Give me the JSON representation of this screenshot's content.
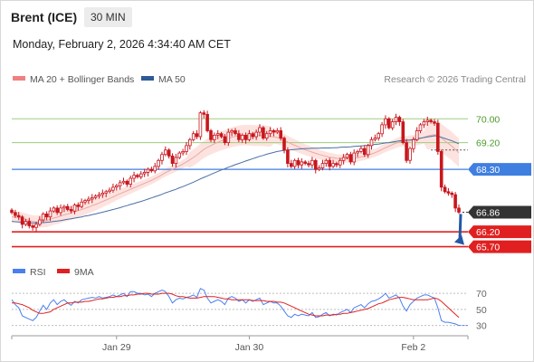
{
  "header": {
    "title": "Brent (ICE)",
    "timeframe": "30 MIN",
    "datetime": "Monday, February 2, 2026 4:34:40 AM CET"
  },
  "legend": {
    "ma20": "MA 20 + Bollinger Bands",
    "ma50": "MA 50",
    "copyright": "Research © 2026 Trading Central",
    "rsi": "RSI",
    "rsi_ma": "9MA"
  },
  "colors": {
    "candle": "#c8161d",
    "ma20": "#e8a8a8",
    "band_fill": "#fde0dc",
    "ma50": "#4a6fa5",
    "green_level": "#9fcc80",
    "blue_level": "#3f7fe0",
    "red_level": "#e02020",
    "current_price_box": "#333333",
    "rsi_line": "#4a7ff0",
    "rsi_ma_line": "#e02020",
    "arrow": "#2457a6"
  },
  "chart_data": [
    {
      "type": "candlestick",
      "title": "Brent (ICE)",
      "timeframe": "30 MIN",
      "ylim": [
        65.2,
        70.8
      ],
      "x_ticks": [
        "Jan 29",
        "Jan 30",
        "Feb 2"
      ],
      "grid": false,
      "levels": [
        {
          "label": "70.00",
          "value": 70.0,
          "kind": "resistance",
          "color": "#9fcc80"
        },
        {
          "label": "69.20",
          "value": 69.2,
          "kind": "resistance",
          "color": "#9fcc80"
        },
        {
          "label": "68.30",
          "value": 68.3,
          "kind": "pivot",
          "color": "#3f7fe0"
        },
        {
          "label": "66.86",
          "value": 66.86,
          "kind": "last",
          "color": "#333333"
        },
        {
          "label": "66.20",
          "value": 66.2,
          "kind": "target",
          "color": "#e02020"
        },
        {
          "label": "65.70",
          "value": 65.7,
          "kind": "target",
          "color": "#e02020"
        }
      ],
      "projection": {
        "from": 66.86,
        "to": 65.7
      },
      "series": [
        {
          "name": "MA 20 + Bollinger Bands",
          "indicator": "ma20"
        },
        {
          "name": "MA 50",
          "indicator": "ma50"
        }
      ],
      "close": [
        66.85,
        66.75,
        66.7,
        66.45,
        66.55,
        66.4,
        66.35,
        66.45,
        66.6,
        66.8,
        66.7,
        66.9,
        67.0,
        66.85,
        67.0,
        67.05,
        66.95,
        66.9,
        67.1,
        67.05,
        67.2,
        67.25,
        67.3,
        67.35,
        67.4,
        67.45,
        67.5,
        67.55,
        67.6,
        67.7,
        67.75,
        67.85,
        67.9,
        67.8,
        68.0,
        68.1,
        68.05,
        68.15,
        68.2,
        68.3,
        68.25,
        68.4,
        68.6,
        68.8,
        68.95,
        68.75,
        68.5,
        68.7,
        68.85,
        68.9,
        69.1,
        69.3,
        69.5,
        69.4,
        70.2,
        70.15,
        69.6,
        69.3,
        69.45,
        69.5,
        69.4,
        69.2,
        69.55,
        69.6,
        69.5,
        69.3,
        69.45,
        69.3,
        69.5,
        69.4,
        69.55,
        69.7,
        69.35,
        69.5,
        69.6,
        69.55,
        69.6,
        69.35,
        68.95,
        68.5,
        68.4,
        68.6,
        68.45,
        68.55,
        68.5,
        68.45,
        68.6,
        68.3,
        68.35,
        68.5,
        68.6,
        68.4,
        68.5,
        68.45,
        68.6,
        68.7,
        68.8,
        68.55,
        68.85,
        68.9,
        69.0,
        68.8,
        69.1,
        69.3,
        69.35,
        69.5,
        69.8,
        70.0,
        69.7,
        69.9,
        70.05,
        69.9,
        69.2,
        68.6,
        69.0,
        69.3,
        69.6,
        69.8,
        69.9,
        69.95,
        69.9,
        69.85,
        68.9,
        67.7,
        67.55,
        67.5,
        67.45,
        67.0,
        66.86
      ],
      "ma20": [
        66.7,
        66.7,
        66.68,
        66.65,
        66.62,
        66.58,
        66.55,
        66.53,
        66.55,
        66.57,
        66.58,
        66.62,
        66.66,
        66.69,
        66.73,
        66.77,
        66.8,
        66.83,
        66.87,
        66.91,
        66.95,
        66.99,
        67.03,
        67.08,
        67.12,
        67.17,
        67.22,
        67.27,
        67.32,
        67.37,
        67.43,
        67.48,
        67.53,
        67.58,
        67.63,
        67.68,
        67.73,
        67.78,
        67.83,
        67.88,
        67.93,
        67.99,
        68.05,
        68.12,
        68.19,
        68.25,
        68.3,
        68.36,
        68.42,
        68.48,
        68.55,
        68.62,
        68.7,
        68.78,
        68.88,
        68.97,
        69.04,
        69.1,
        69.16,
        69.21,
        69.26,
        69.3,
        69.34,
        69.38,
        69.41,
        69.43,
        69.45,
        69.45,
        69.45,
        69.44,
        69.44,
        69.44,
        69.43,
        69.42,
        69.41,
        69.39,
        69.37,
        69.33,
        69.28,
        69.22,
        69.16,
        69.11,
        69.06,
        69.01,
        68.96,
        68.92,
        68.88,
        68.84,
        68.8,
        68.77,
        68.74,
        68.71,
        68.69,
        68.67,
        68.66,
        68.66,
        68.66,
        68.66,
        68.67,
        68.69,
        68.72,
        68.74,
        68.78,
        68.82,
        68.86,
        68.91,
        68.97,
        69.03,
        69.08,
        69.13,
        69.18,
        69.22,
        69.24,
        69.24,
        69.25,
        69.27,
        69.3,
        69.34,
        69.38,
        69.42,
        69.45,
        69.47,
        69.44,
        69.35,
        69.26,
        69.17,
        69.08,
        68.97,
        68.86
      ],
      "ma50": [
        66.55,
        66.54,
        66.53,
        66.52,
        66.51,
        66.5,
        66.5,
        66.5,
        66.5,
        66.51,
        66.52,
        66.53,
        66.55,
        66.56,
        66.58,
        66.6,
        66.62,
        66.64,
        66.66,
        66.68,
        66.7,
        66.73,
        66.75,
        66.78,
        66.8,
        66.83,
        66.86,
        66.89,
        66.92,
        66.95,
        66.98,
        67.01,
        67.05,
        67.08,
        67.12,
        67.15,
        67.19,
        67.22,
        67.26,
        67.3,
        67.34,
        67.38,
        67.42,
        67.46,
        67.51,
        67.55,
        67.59,
        67.63,
        67.68,
        67.72,
        67.77,
        67.82,
        67.87,
        67.92,
        67.98,
        68.03,
        68.08,
        68.13,
        68.18,
        68.23,
        68.28,
        68.32,
        68.37,
        68.41,
        68.46,
        68.5,
        68.54,
        68.58,
        68.62,
        68.66,
        68.7,
        68.74,
        68.77,
        68.81,
        68.84,
        68.87,
        68.9,
        68.92,
        68.94,
        68.95,
        68.96,
        68.97,
        68.98,
        68.99,
        69.0,
        69.0,
        69.01,
        69.01,
        69.01,
        69.02,
        69.02,
        69.02,
        69.03,
        69.03,
        69.04,
        69.05,
        69.05,
        69.06,
        69.07,
        69.08,
        69.09,
        69.1,
        69.11,
        69.12,
        69.14,
        69.15,
        69.17,
        69.19,
        69.2,
        69.22,
        69.24,
        69.26,
        69.27,
        69.28,
        69.29,
        69.31,
        69.33,
        69.35,
        69.37,
        69.39,
        69.41,
        69.43,
        69.42,
        69.38,
        69.34,
        69.3,
        69.26,
        69.21,
        69.16
      ]
    },
    {
      "type": "line",
      "title": "",
      "ylim": [
        24,
        78
      ],
      "y_ticks": [
        70,
        50,
        30
      ],
      "series": [
        {
          "name": "RSI",
          "values": [
            62,
            56,
            52,
            42,
            40,
            38,
            36,
            40,
            48,
            55,
            50,
            58,
            62,
            56,
            60,
            62,
            58,
            55,
            60,
            58,
            62,
            63,
            64,
            65,
            64,
            66,
            64,
            65,
            66,
            68,
            66,
            68,
            70,
            66,
            72,
            72,
            70,
            70,
            68,
            69,
            66,
            70,
            72,
            74,
            72,
            66,
            58,
            62,
            64,
            63,
            65,
            66,
            68,
            65,
            76,
            74,
            64,
            58,
            60,
            62,
            60,
            56,
            64,
            66,
            64,
            60,
            62,
            58,
            62,
            60,
            62,
            64,
            56,
            58,
            60,
            58,
            58,
            54,
            48,
            42,
            40,
            44,
            42,
            44,
            43,
            42,
            46,
            40,
            41,
            44,
            46,
            42,
            44,
            43,
            46,
            48,
            50,
            46,
            52,
            54,
            56,
            52,
            57,
            60,
            61,
            63,
            66,
            70,
            64,
            66,
            68,
            64,
            54,
            48,
            56,
            60,
            64,
            66,
            68,
            68,
            66,
            64,
            52,
            36,
            34,
            34,
            33,
            32,
            30
          ]
        },
        {
          "name": "9MA",
          "values": [
            58,
            58,
            57,
            56,
            54,
            52,
            49,
            47,
            45,
            45,
            46,
            47,
            50,
            52,
            54,
            56,
            58,
            58,
            59,
            59,
            59,
            60,
            60,
            61,
            62,
            63,
            63,
            64,
            65,
            65,
            66,
            66,
            67,
            67,
            68,
            68,
            69,
            69,
            70,
            70,
            69,
            69,
            69,
            70,
            70,
            70,
            69,
            67,
            66,
            66,
            65,
            64,
            64,
            64,
            65,
            66,
            66,
            66,
            66,
            65,
            64,
            63,
            63,
            62,
            62,
            62,
            62,
            62,
            62,
            61,
            61,
            61,
            61,
            60,
            60,
            60,
            59,
            59,
            58,
            56,
            54,
            52,
            50,
            48,
            46,
            44,
            43,
            42,
            42,
            42,
            43,
            43,
            43,
            44,
            44,
            45,
            45,
            46,
            47,
            48,
            49,
            50,
            51,
            53,
            55,
            57,
            58,
            60,
            62,
            63,
            64,
            65,
            65,
            64,
            63,
            62,
            62,
            62,
            62,
            62,
            63,
            64,
            63,
            60,
            56,
            52,
            48,
            44,
            40
          ]
        }
      ]
    }
  ]
}
